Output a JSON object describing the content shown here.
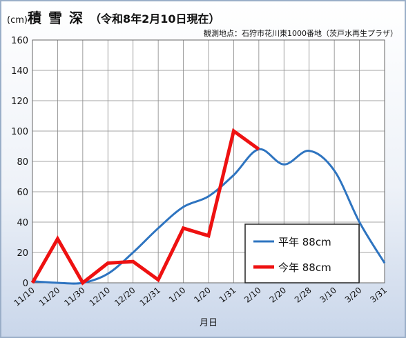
{
  "title": {
    "unit": "(cm)",
    "main": "積雪深",
    "date": "（令和8年2月10日現在）"
  },
  "subtitle": "観測地点：石狩市花川東1000番地（茨戸水再生プラザ）",
  "chart_data": {
    "type": "line",
    "title": "積雪深",
    "xlabel": "月日",
    "ylabel": "",
    "categories": [
      "11/10",
      "11/20",
      "11/30",
      "12/10",
      "12/20",
      "12/31",
      "1/10",
      "1/20",
      "1/31",
      "2/10",
      "2/20",
      "2/28",
      "3/10",
      "3/20",
      "3/31"
    ],
    "ylim": [
      0,
      160
    ],
    "yticks": [
      0,
      20,
      40,
      60,
      80,
      100,
      120,
      140,
      160
    ],
    "grid": true,
    "legend_position": "bottom-right",
    "series": [
      {
        "name": "平年",
        "value_label": "88cm",
        "color": "#2e74c0",
        "smooth": true,
        "values": [
          1,
          0,
          0,
          6,
          20,
          36,
          50,
          57,
          71,
          88,
          78,
          87,
          74,
          40,
          13
        ]
      },
      {
        "name": "今年",
        "value_label": "88cm",
        "color": "#ee1111",
        "smooth": false,
        "values": [
          0,
          29,
          0,
          13,
          14,
          2,
          36,
          31,
          100,
          88,
          null,
          null,
          null,
          null,
          null
        ]
      }
    ]
  }
}
